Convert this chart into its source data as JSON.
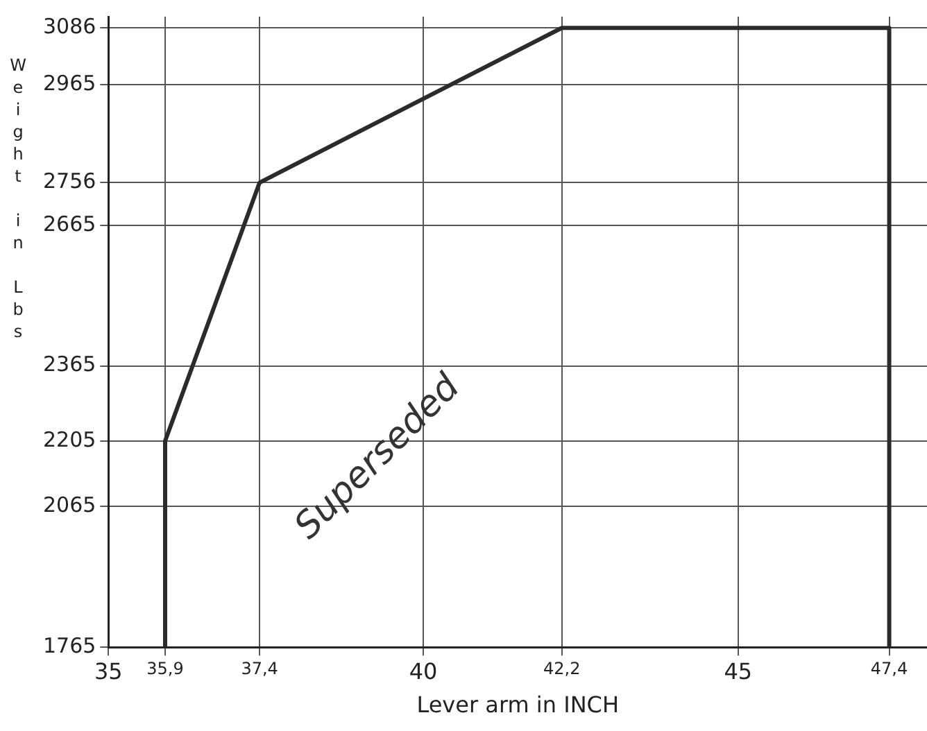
{
  "chart_data": {
    "type": "line",
    "xlabel": "Lever arm in INCH",
    "ylabel": "Weight in Lbs",
    "x": [
      35.9,
      35.9,
      37.4,
      42.2,
      47.4,
      47.4
    ],
    "series": [
      {
        "color": "#2b2b2b",
        "values": [
          1765,
          2205,
          2756,
          3086,
          3086,
          1765
        ]
      }
    ],
    "xlim": [
      35,
      48
    ],
    "xticks": [
      35,
      {
        "value": 35.9,
        "label": "35,9"
      },
      {
        "value": 37.4,
        "label": "37,4"
      },
      40,
      {
        "value": 42.2,
        "label": "42,2"
      },
      45,
      {
        "value": 47.4,
        "label": "47,4"
      }
    ],
    "ylim": [
      1765,
      3110
    ],
    "yticks": [
      1765,
      2065,
      2205,
      2365,
      2665,
      2756,
      2965,
      3086
    ],
    "grid": true,
    "legend": false,
    "marker": "none",
    "line_style": "solid",
    "annotations": [
      "Superseded"
    ]
  }
}
